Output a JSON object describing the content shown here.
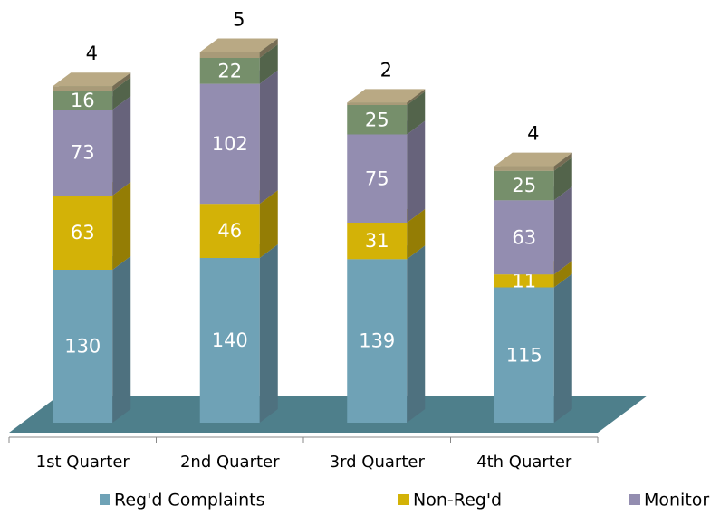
{
  "chart_data": {
    "type": "bar3d_stacked",
    "categories": [
      "1st Quarter",
      "2nd Quarter",
      "3rd Quarter",
      "4th Quarter"
    ],
    "series": [
      {
        "name": "Reg'd Complaints",
        "color": "#6fa2b6",
        "values": [
          130,
          140,
          139,
          115
        ]
      },
      {
        "name": "Non-Reg'd",
        "color": "#d3b207",
        "values": [
          63,
          46,
          31,
          11
        ]
      },
      {
        "name": "Monitor",
        "color": "#938db0",
        "values": [
          73,
          102,
          75,
          63
        ]
      },
      {
        "name": null,
        "color": "#768f6b",
        "values": [
          16,
          22,
          25,
          25
        ]
      },
      {
        "name": null,
        "color": "#a89a78",
        "values": [
          4,
          5,
          2,
          4
        ]
      }
    ],
    "floor_color": "#4e7f8b"
  }
}
